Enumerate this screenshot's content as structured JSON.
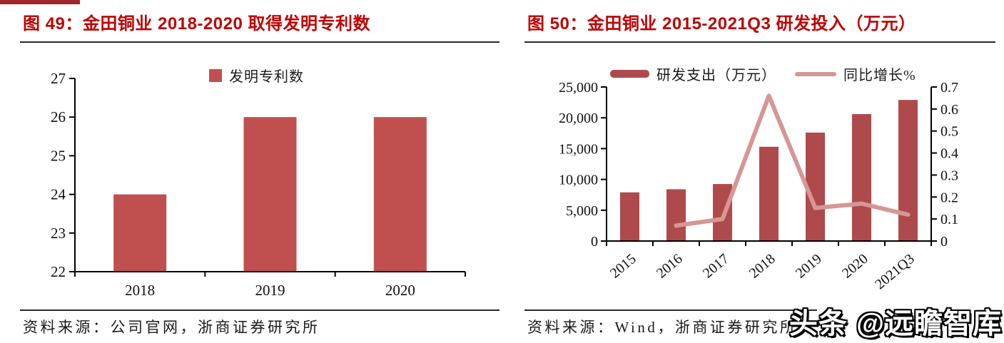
{
  "fig49": {
    "title": "图 49：金田铜业 2018-2020 取得发明专利数",
    "legend_label": "发明专利数",
    "source": "资料来源：公司官网，浙商证券研究所"
  },
  "fig50": {
    "title": "图 50：金田铜业 2015-2021Q3 研发投入（万元）",
    "legend_bar_label": "研发支出（万元）",
    "legend_line_label": "同比增长%",
    "source": "资料来源：Wind，浙商证券研究所"
  },
  "watermark": "头条 @远瞻智库",
  "colors": {
    "title_red": "#c00000",
    "left_bar": "#c0504f",
    "right_bar": "#ae4a4c",
    "growth_line": "#d69694",
    "axis": "#000000"
  },
  "chart_data": [
    {
      "type": "bar",
      "title": "金田铜业 2018-2020 取得发明专利数",
      "categories": [
        "2018",
        "2019",
        "2020"
      ],
      "series": [
        {
          "name": "发明专利数",
          "type": "bar",
          "color": "#c0504f",
          "values": [
            24,
            26,
            26
          ]
        }
      ],
      "ylim": [
        22,
        27
      ],
      "yticks": [
        "22",
        "23",
        "24",
        "25",
        "26",
        "27"
      ],
      "grid": false,
      "legend_position": "top-center"
    },
    {
      "type": "bar+line",
      "title": "金田铜业 2015-2021Q3 研发投入（万元）",
      "categories": [
        "2015",
        "2016",
        "2017",
        "2018",
        "2019",
        "2020",
        "2021Q3"
      ],
      "series": [
        {
          "name": "研发支出（万元）",
          "type": "bar",
          "axis": "left",
          "color": "#ae4a4c",
          "values": [
            7900,
            8400,
            9250,
            15300,
            17600,
            20600,
            22900
          ]
        },
        {
          "name": "同比增长%",
          "type": "line",
          "axis": "right",
          "color": "#d69694",
          "values": [
            null,
            0.07,
            0.1,
            0.66,
            0.15,
            0.17,
            0.12
          ]
        }
      ],
      "left_axis": {
        "label": "",
        "lim": [
          0,
          25000
        ],
        "ticks": [
          "0",
          "5,000",
          "10,000",
          "15,000",
          "20,000",
          "25,000"
        ]
      },
      "right_axis": {
        "label": "",
        "lim": [
          0,
          0.7
        ],
        "ticks": [
          "0",
          "0.1",
          "0.2",
          "0.3",
          "0.4",
          "0.5",
          "0.6",
          "0.7"
        ]
      },
      "grid": false,
      "legend_position": "top-center"
    }
  ]
}
